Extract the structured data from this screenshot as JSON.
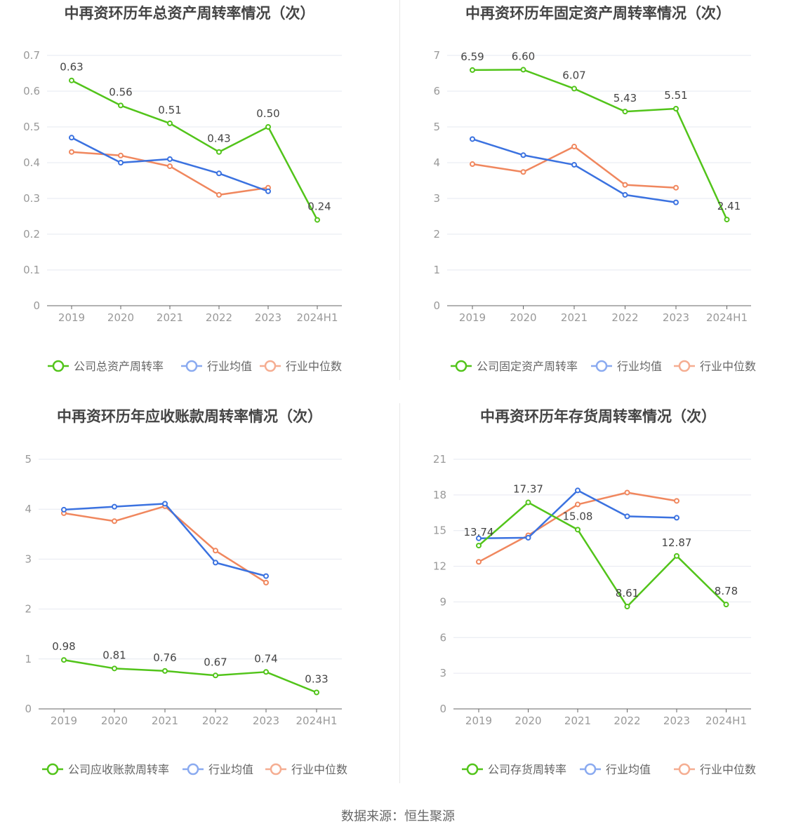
{
  "colors": {
    "company": "#52c41a",
    "avg": "#3b72e0",
    "median": "#f0875e",
    "avg_legend": "#8aaaf0",
    "median_legend": "#f5ad91",
    "axis": "#999999",
    "grid": "#e6e8f0",
    "title": "#444444"
  },
  "source_text": "数据来源：恒生聚源",
  "chart_data": [
    {
      "type": "line",
      "title": "中再资环历年总资产周转率情况（次）",
      "categories": [
        "2019",
        "2020",
        "2021",
        "2022",
        "2023",
        "2024H1"
      ],
      "y_ticks": [
        "0",
        "0.1",
        "0.2",
        "0.3",
        "0.4",
        "0.5",
        "0.6",
        "0.7"
      ],
      "ylim": [
        0,
        0.7
      ],
      "grid": true,
      "legend_position": "bottom",
      "series": [
        {
          "name": "公司总资产周转率",
          "role": "company",
          "values": [
            0.63,
            0.56,
            0.51,
            0.43,
            0.5,
            0.24
          ],
          "labels": [
            "0.63",
            "0.56",
            "0.51",
            "0.43",
            "0.50",
            "0.24"
          ]
        },
        {
          "name": "行业均值",
          "role": "avg",
          "values": [
            0.47,
            0.4,
            0.41,
            0.37,
            0.32,
            null
          ]
        },
        {
          "name": "行业中位数",
          "role": "median",
          "values": [
            0.43,
            0.42,
            0.39,
            0.31,
            0.33,
            null
          ]
        }
      ]
    },
    {
      "type": "line",
      "title": "中再资环历年固定资产周转率情况（次）",
      "categories": [
        "2019",
        "2020",
        "2021",
        "2022",
        "2023",
        "2024H1"
      ],
      "y_ticks": [
        "0",
        "1",
        "2",
        "3",
        "4",
        "5",
        "6",
        "7"
      ],
      "ylim": [
        0,
        7
      ],
      "grid": true,
      "legend_position": "bottom",
      "series": [
        {
          "name": "公司固定资产周转率",
          "role": "company",
          "values": [
            6.59,
            6.6,
            6.07,
            5.43,
            5.51,
            2.41
          ],
          "labels": [
            "6.59",
            "6.60",
            "6.07",
            "5.43",
            "5.51",
            "2.41"
          ]
        },
        {
          "name": "行业均值",
          "role": "avg",
          "values": [
            4.66,
            4.21,
            3.94,
            3.1,
            2.89,
            null
          ]
        },
        {
          "name": "行业中位数",
          "role": "median",
          "values": [
            3.96,
            3.74,
            4.45,
            3.38,
            3.3,
            null
          ]
        }
      ]
    },
    {
      "type": "line",
      "title": "中再资环历年应收账款周转率情况（次）",
      "categories": [
        "2019",
        "2020",
        "2021",
        "2022",
        "2023",
        "2024H1"
      ],
      "y_ticks": [
        "0",
        "1",
        "2",
        "3",
        "4",
        "5"
      ],
      "ylim": [
        0,
        5
      ],
      "grid": true,
      "legend_position": "bottom",
      "series": [
        {
          "name": "公司应收账款周转率",
          "role": "company",
          "values": [
            0.98,
            0.81,
            0.76,
            0.67,
            0.74,
            0.33
          ],
          "labels": [
            "0.98",
            "0.81",
            "0.76",
            "0.67",
            "0.74",
            "0.33"
          ]
        },
        {
          "name": "行业均值",
          "role": "avg",
          "values": [
            3.99,
            4.05,
            4.11,
            2.93,
            2.66,
            null
          ]
        },
        {
          "name": "行业中位数",
          "role": "median",
          "values": [
            3.92,
            3.76,
            4.06,
            3.17,
            2.53,
            null
          ]
        }
      ]
    },
    {
      "type": "line",
      "title": "中再资环历年存货周转率情况（次）",
      "categories": [
        "2019",
        "2020",
        "2021",
        "2022",
        "2023",
        "2024H1"
      ],
      "y_ticks": [
        "0",
        "3",
        "6",
        "9",
        "12",
        "15",
        "18",
        "21"
      ],
      "ylim": [
        0,
        21
      ],
      "grid": true,
      "legend_position": "bottom",
      "series": [
        {
          "name": "公司存货周转率",
          "role": "company",
          "values": [
            13.74,
            17.37,
            15.08,
            8.61,
            12.87,
            8.78
          ],
          "labels": [
            "13.74",
            "17.37",
            "15.08",
            "8.61",
            "12.87",
            "8.78"
          ]
        },
        {
          "name": "行业均值",
          "role": "avg",
          "values": [
            14.35,
            14.4,
            18.38,
            16.2,
            16.08,
            null
          ]
        },
        {
          "name": "行业中位数",
          "role": "median",
          "values": [
            12.37,
            14.6,
            17.2,
            18.2,
            17.5,
            null
          ]
        }
      ]
    }
  ]
}
